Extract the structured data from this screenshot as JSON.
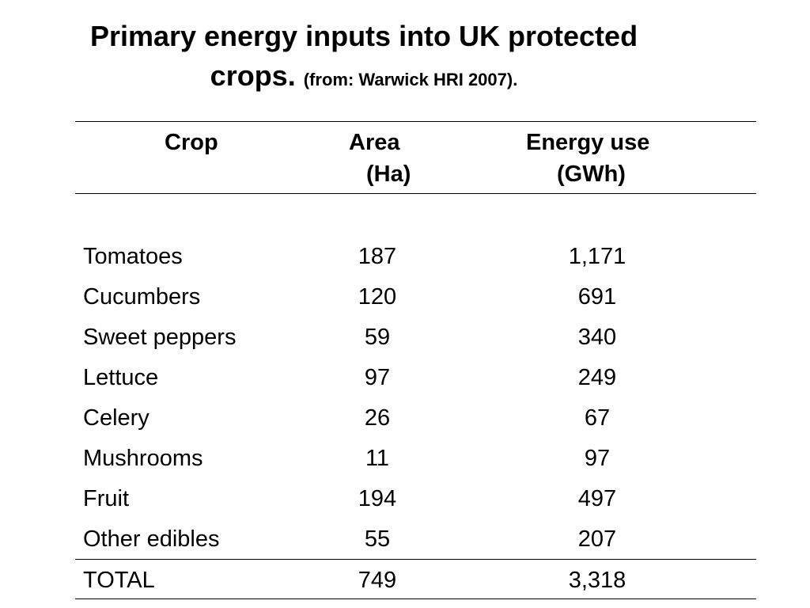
{
  "title": {
    "line1": "Primary energy inputs into UK protected",
    "line2": "crops.",
    "source": "(from: Warwick HRI 2007)."
  },
  "table": {
    "headers": {
      "crop": "Crop",
      "area_line1": "Area",
      "area_line2": "(Ha)",
      "energy_line1": "Energy use",
      "energy_line2": "(GWh)"
    },
    "rows": [
      {
        "crop": "Tomatoes",
        "area": "187",
        "energy": "1,171"
      },
      {
        "crop": "Cucumbers",
        "area": "120",
        "energy": "691"
      },
      {
        "crop": "Sweet peppers",
        "area": "59",
        "energy": "340"
      },
      {
        "crop": "Lettuce",
        "area": "97",
        "energy": "249"
      },
      {
        "crop": "Celery",
        "area": "26",
        "energy": "67"
      },
      {
        "crop": "Mushrooms",
        "area": "11",
        "energy": "97"
      },
      {
        "crop": "Fruit",
        "area": "194",
        "energy": "497"
      },
      {
        "crop": "Other edibles",
        "area": "55",
        "energy": "207"
      }
    ],
    "total": {
      "crop": "TOTAL",
      "area": "749",
      "energy": "3,318"
    }
  }
}
